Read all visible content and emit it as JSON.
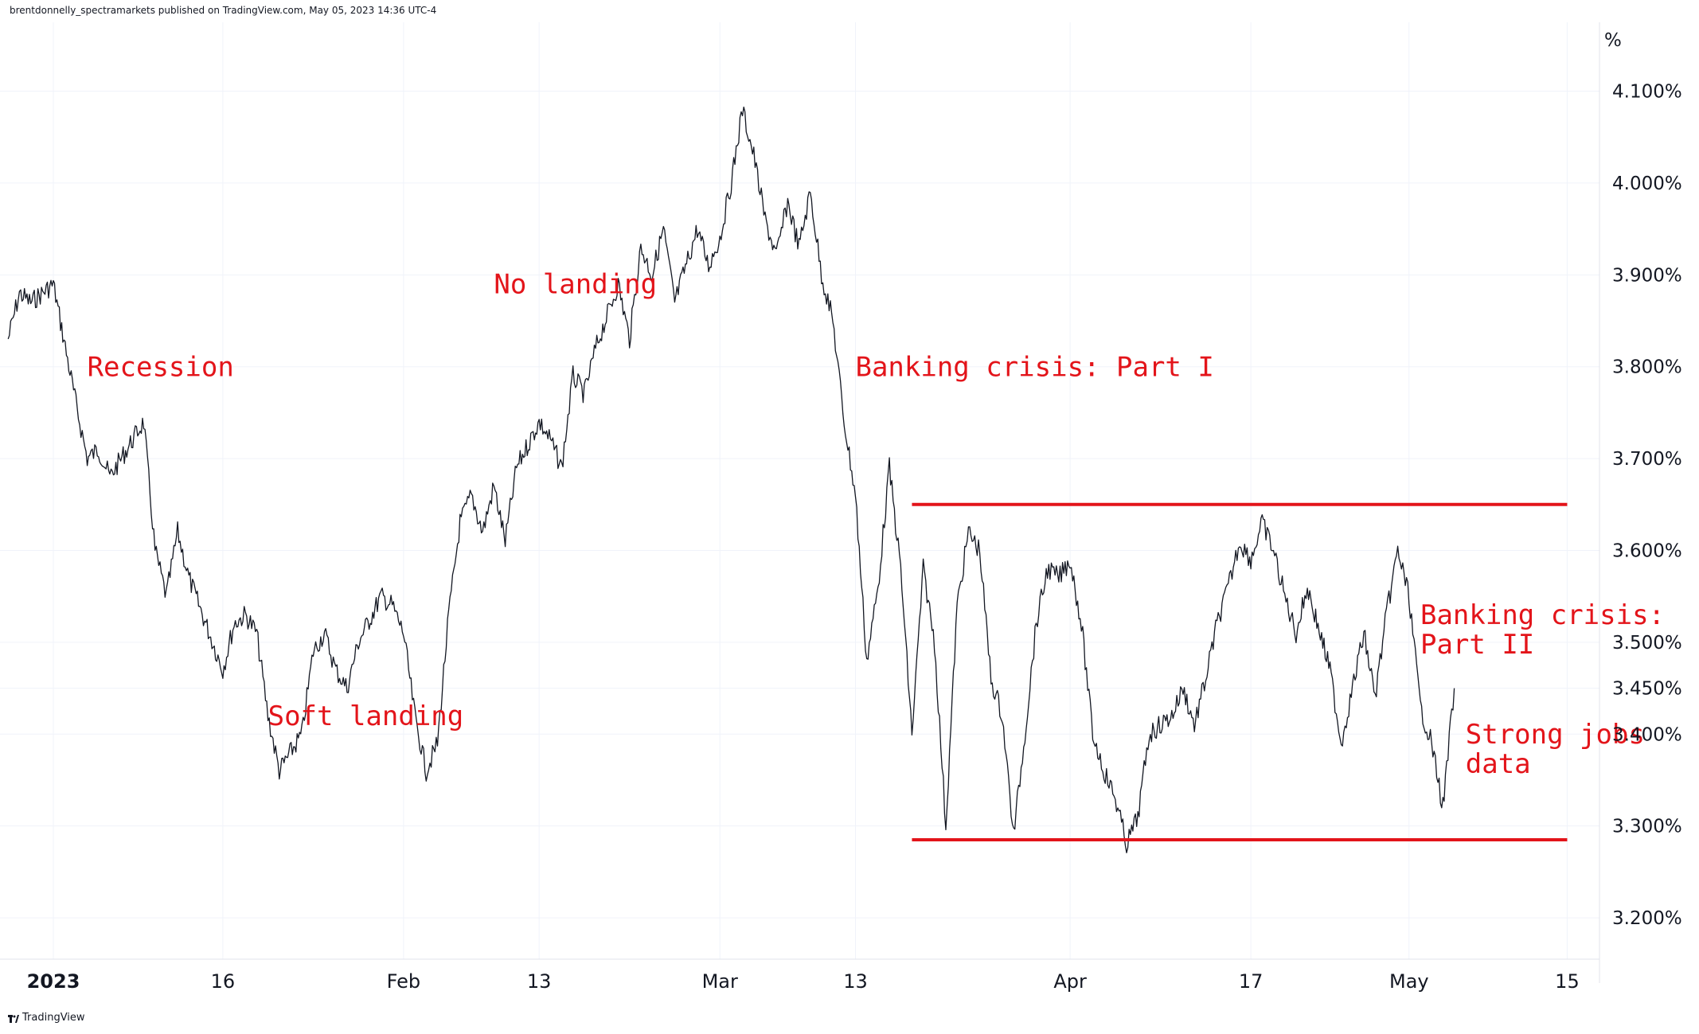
{
  "header": {
    "publisher_line": "brentdonnelly_spectramarkets published on TradingView.com, May 05, 2023 14:36 UTC-4"
  },
  "footer": {
    "brand": "TradingView"
  },
  "colors": {
    "price_line": "#131722",
    "annotation": "#e3141a",
    "grid": "#f0f3fa",
    "axis_text": "#131722"
  },
  "chart_data": {
    "type": "line",
    "ylabel": "%",
    "ylim": [
      3.155,
      4.175
    ],
    "y_ticks": [
      "4.100%",
      "4.000%",
      "3.900%",
      "3.800%",
      "3.700%",
      "3.600%",
      "3.500%",
      "3.450%",
      "3.400%",
      "3.300%",
      "3.200%"
    ],
    "x_ticks": [
      "2023",
      "16",
      "Feb",
      "13",
      "Mar",
      "13",
      "Apr",
      "17",
      "May",
      "15"
    ],
    "x_tick_dates": [
      "2023-01-01",
      "2023-01-16",
      "2023-02-01",
      "2023-02-13",
      "2023-03-01",
      "2023-03-13",
      "2023-04-01",
      "2023-04-17",
      "2023-05-01",
      "2023-05-15"
    ],
    "series": [
      {
        "values_dated": [
          [
            "2022-12-28",
            3.83
          ],
          [
            "2022-12-29",
            3.88
          ],
          [
            "2022-12-30",
            3.87
          ],
          [
            "2023-01-01",
            3.89
          ],
          [
            "2023-01-03",
            3.76
          ],
          [
            "2023-01-04",
            3.7
          ],
          [
            "2023-01-05",
            3.71
          ],
          [
            "2023-01-06",
            3.68
          ],
          [
            "2023-01-09",
            3.74
          ],
          [
            "2023-01-10",
            3.6
          ],
          [
            "2023-01-11",
            3.55
          ],
          [
            "2023-01-12",
            3.62
          ],
          [
            "2023-01-13",
            3.57
          ],
          [
            "2023-01-16",
            3.47
          ],
          [
            "2023-01-17",
            3.52
          ],
          [
            "2023-01-18",
            3.53
          ],
          [
            "2023-01-19",
            3.51
          ],
          [
            "2023-01-20",
            3.42
          ],
          [
            "2023-01-21",
            3.36
          ],
          [
            "2023-01-23",
            3.4
          ],
          [
            "2023-01-24",
            3.49
          ],
          [
            "2023-01-25",
            3.51
          ],
          [
            "2023-01-26",
            3.47
          ],
          [
            "2023-01-27",
            3.45
          ],
          [
            "2023-01-28",
            3.5
          ],
          [
            "2023-01-30",
            3.55
          ],
          [
            "2023-01-31",
            3.54
          ],
          [
            "2023-02-01",
            3.51
          ],
          [
            "2023-02-02",
            3.42
          ],
          [
            "2023-02-03",
            3.36
          ],
          [
            "2023-02-04",
            3.39
          ],
          [
            "2023-02-05",
            3.53
          ],
          [
            "2023-02-06",
            3.63
          ],
          [
            "2023-02-07",
            3.66
          ],
          [
            "2023-02-08",
            3.62
          ],
          [
            "2023-02-09",
            3.67
          ],
          [
            "2023-02-10",
            3.61
          ],
          [
            "2023-02-11",
            3.69
          ],
          [
            "2023-02-13",
            3.74
          ],
          [
            "2023-02-14",
            3.72
          ],
          [
            "2023-02-15",
            3.69
          ],
          [
            "2023-02-16",
            3.79
          ],
          [
            "2023-02-17",
            3.77
          ],
          [
            "2023-02-18",
            3.82
          ],
          [
            "2023-02-20",
            3.89
          ],
          [
            "2023-02-21",
            3.83
          ],
          [
            "2023-02-22",
            3.93
          ],
          [
            "2023-02-23",
            3.9
          ],
          [
            "2023-02-24",
            3.95
          ],
          [
            "2023-02-25",
            3.87
          ],
          [
            "2023-02-27",
            3.95
          ],
          [
            "2023-02-28",
            3.91
          ],
          [
            "2023-03-01",
            3.94
          ],
          [
            "2023-03-02",
            4.0
          ],
          [
            "2023-03-03",
            4.08
          ],
          [
            "2023-03-04",
            4.03
          ],
          [
            "2023-03-05",
            3.96
          ],
          [
            "2023-03-06",
            3.92
          ],
          [
            "2023-03-07",
            3.98
          ],
          [
            "2023-03-08",
            3.93
          ],
          [
            "2023-03-09",
            3.99
          ],
          [
            "2023-03-10",
            3.9
          ],
          [
            "2023-03-11",
            3.85
          ],
          [
            "2023-03-12",
            3.74
          ],
          [
            "2023-03-13",
            3.66
          ],
          [
            "2023-03-14",
            3.48
          ],
          [
            "2023-03-15",
            3.56
          ],
          [
            "2023-03-16",
            3.69
          ],
          [
            "2023-03-17",
            3.58
          ],
          [
            "2023-03-18",
            3.4
          ],
          [
            "2023-03-19",
            3.58
          ],
          [
            "2023-03-20",
            3.5
          ],
          [
            "2023-03-21",
            3.3
          ],
          [
            "2023-03-22",
            3.54
          ],
          [
            "2023-03-23",
            3.62
          ],
          [
            "2023-03-24",
            3.6
          ],
          [
            "2023-03-25",
            3.46
          ],
          [
            "2023-03-26",
            3.42
          ],
          [
            "2023-03-27",
            3.29
          ],
          [
            "2023-03-28",
            3.4
          ],
          [
            "2023-03-29",
            3.52
          ],
          [
            "2023-03-30",
            3.58
          ],
          [
            "2023-03-31",
            3.57
          ],
          [
            "2023-04-01",
            3.59
          ],
          [
            "2023-04-02",
            3.52
          ],
          [
            "2023-04-03",
            3.4
          ],
          [
            "2023-04-04",
            3.36
          ],
          [
            "2023-04-05",
            3.33
          ],
          [
            "2023-04-06",
            3.28
          ],
          [
            "2023-04-07",
            3.31
          ],
          [
            "2023-04-08",
            3.4
          ],
          [
            "2023-04-10",
            3.42
          ],
          [
            "2023-04-11",
            3.45
          ],
          [
            "2023-04-12",
            3.41
          ],
          [
            "2023-04-13",
            3.46
          ],
          [
            "2023-04-14",
            3.52
          ],
          [
            "2023-04-15",
            3.56
          ],
          [
            "2023-04-16",
            3.61
          ],
          [
            "2023-04-17",
            3.59
          ],
          [
            "2023-04-18",
            3.63
          ],
          [
            "2023-04-19",
            3.6
          ],
          [
            "2023-04-20",
            3.55
          ],
          [
            "2023-04-21",
            3.51
          ],
          [
            "2023-04-22",
            3.56
          ],
          [
            "2023-04-24",
            3.47
          ],
          [
            "2023-04-25",
            3.39
          ],
          [
            "2023-04-26",
            3.45
          ],
          [
            "2023-04-27",
            3.51
          ],
          [
            "2023-04-28",
            3.44
          ],
          [
            "2023-04-29",
            3.53
          ],
          [
            "2023-04-30",
            3.6
          ],
          [
            "2023-05-01",
            3.55
          ],
          [
            "2023-05-02",
            3.43
          ],
          [
            "2023-05-03",
            3.39
          ],
          [
            "2023-05-04",
            3.32
          ],
          [
            "2023-05-05",
            3.45
          ]
        ]
      }
    ],
    "annotations": [
      {
        "text": "Recession",
        "date": "2023-01-04",
        "value": 3.79
      },
      {
        "text": "No landing",
        "date": "2023-02-09",
        "value": 3.88
      },
      {
        "text": "Soft landing",
        "date": "2023-01-20",
        "value": 3.41
      },
      {
        "text": "Banking crisis: Part I",
        "date": "2023-03-13",
        "value": 3.79
      },
      {
        "text_lines": [
          "Banking crisis:",
          "Part II"
        ],
        "date": "2023-05-02",
        "value": 3.52
      },
      {
        "text_lines": [
          "Strong jobs",
          "data"
        ],
        "date": "2023-05-06",
        "value": 3.39
      }
    ],
    "range_lines": [
      {
        "name": "range-top",
        "value": 3.65,
        "start_date": "2023-03-18",
        "end_date": "2023-05-15"
      },
      {
        "name": "range-bottom",
        "value": 3.285,
        "start_date": "2023-03-18",
        "end_date": "2023-05-15"
      }
    ],
    "grid": true,
    "legend": "none"
  }
}
